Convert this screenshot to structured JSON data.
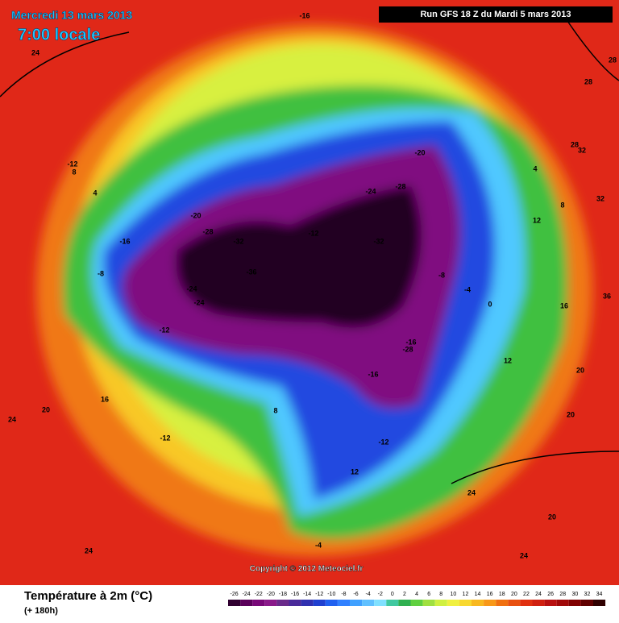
{
  "header": {
    "date": "Mercredi 13 mars 2013",
    "time": "7:00 locale",
    "run": "Run GFS 18 Z du Mardi 5 mars 2013"
  },
  "map_labels": [
    "24",
    "-16",
    "28",
    "28",
    "32",
    "-12",
    "8",
    "4",
    "-8",
    "-16",
    "-20",
    "-24",
    "-28",
    "-32",
    "-36",
    "-24",
    "-28",
    "-32",
    "-20",
    "-12",
    "-16",
    "-8",
    "-4",
    "0",
    "4",
    "8",
    "12",
    "16",
    "20",
    "20",
    "24",
    "24",
    "24",
    "28",
    "32",
    "36",
    "-12",
    "-16",
    "-28",
    "-24",
    "-12",
    "-4",
    "8",
    "12",
    "16",
    "20",
    "-12",
    "12",
    "24",
    "20"
  ],
  "copyright": "Copyright © 2012 Meteociel.fr",
  "footer": {
    "title": "Température à 2m (°C)",
    "lead": "(+ 180h)"
  },
  "legend": {
    "labels": [
      -26,
      -24,
      -22,
      -20,
      -18,
      -16,
      -14,
      -12,
      -10,
      -8,
      -6,
      -4,
      -2,
      0,
      2,
      4,
      6,
      8,
      10,
      12,
      14,
      16,
      18,
      20,
      22,
      24,
      26,
      28,
      30,
      32,
      34
    ],
    "colors": [
      "#300030",
      "#5a005a",
      "#780878",
      "#8a1a8a",
      "#6a2a8a",
      "#4a2a9a",
      "#3030b0",
      "#2040d0",
      "#2060f0",
      "#3080ff",
      "#40a0ff",
      "#60c0ff",
      "#80e0ff",
      "#40c8a0",
      "#30b050",
      "#60d040",
      "#a0e040",
      "#d0f040",
      "#f0f040",
      "#f8d830",
      "#f8b820",
      "#f89818",
      "#f07010",
      "#e85010",
      "#e03010",
      "#d02010",
      "#b81010",
      "#a00808",
      "#800000",
      "#600000",
      "#300000"
    ]
  }
}
